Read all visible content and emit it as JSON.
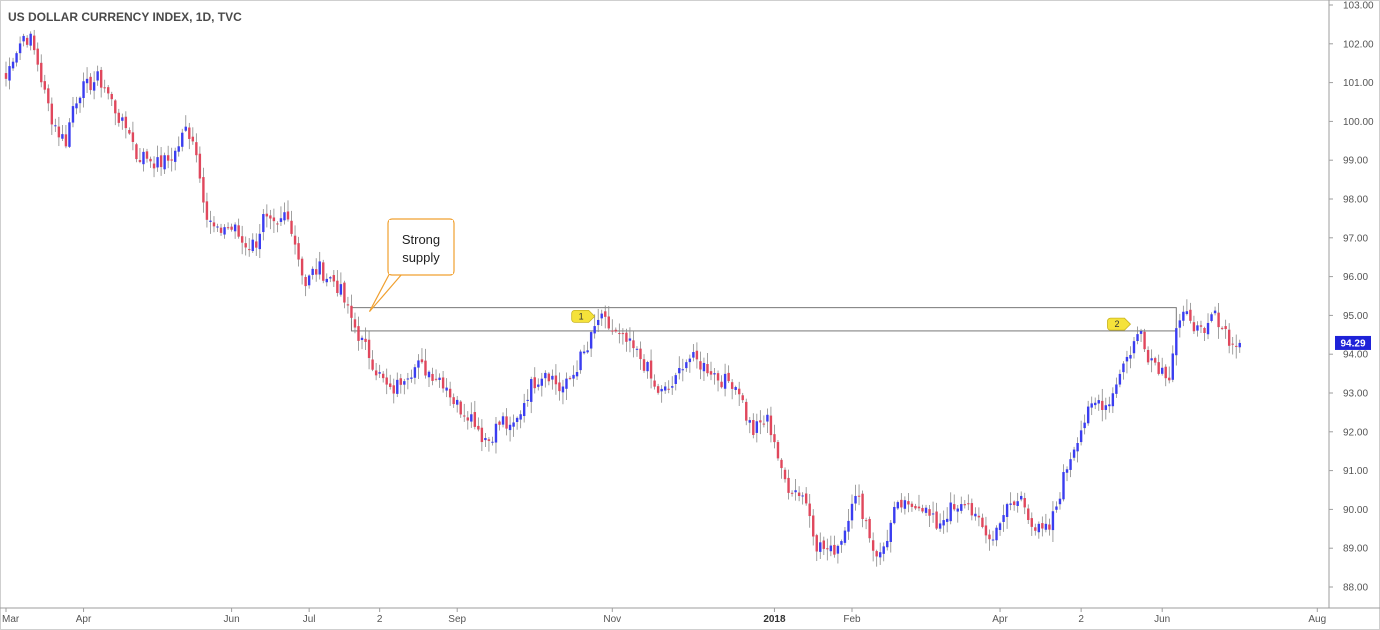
{
  "chart_data": {
    "type": "candlestick",
    "title": "US DOLLAR CURRENCY INDEX, 1D, TVC",
    "ylim": [
      87.6,
      103.0
    ],
    "y_ticks": [
      "103.00",
      "102.00",
      "101.00",
      "100.00",
      "99.00",
      "98.00",
      "97.00",
      "96.00",
      "95.00",
      "94.00",
      "93.00",
      "92.00",
      "91.00",
      "90.00",
      "89.00",
      "88.00"
    ],
    "x_ticks": [
      {
        "label": "Mar",
        "pos": 0
      },
      {
        "label": "Apr",
        "pos": 22
      },
      {
        "label": "Jun",
        "pos": 64
      },
      {
        "label": "Jul",
        "pos": 86
      },
      {
        "label": "2",
        "pos": 106
      },
      {
        "label": "Sep",
        "pos": 128
      },
      {
        "label": "Nov",
        "pos": 172
      },
      {
        "label": "2018",
        "pos": 218,
        "bold": true
      },
      {
        "label": "Feb",
        "pos": 240
      },
      {
        "label": "Apr",
        "pos": 282
      },
      {
        "label": "2",
        "pos": 305
      },
      {
        "label": "Jun",
        "pos": 328
      },
      {
        "label": "Aug",
        "pos": 372
      }
    ],
    "x_range": [
      -0.5,
      387
    ],
    "last_price": "94.29",
    "last_price_value": 94.29,
    "supply_zone": {
      "top": 95.2,
      "bottom": 94.6,
      "start": 98,
      "end": 332
    },
    "annotation": {
      "line1": "Strong",
      "line2": "supply"
    },
    "markers": [
      {
        "label": "1",
        "pos": 167,
        "price": 95.0
      },
      {
        "label": "2",
        "pos": 319,
        "price": 94.8
      }
    ],
    "anchors": [
      [
        0,
        101.1
      ],
      [
        2,
        101.7
      ],
      [
        5,
        102.2
      ],
      [
        7,
        102.1
      ],
      [
        9,
        101.5
      ],
      [
        11,
        100.7
      ],
      [
        13,
        100.1
      ],
      [
        15,
        99.7
      ],
      [
        17,
        99.5
      ],
      [
        19,
        100.4
      ],
      [
        21,
        100.8
      ],
      [
        23,
        100.9
      ],
      [
        26,
        101.1
      ],
      [
        28,
        100.9
      ],
      [
        30,
        100.5
      ],
      [
        33,
        99.9
      ],
      [
        35,
        99.8
      ],
      [
        37,
        99.1
      ],
      [
        40,
        99.1
      ],
      [
        43,
        98.9
      ],
      [
        46,
        99.0
      ],
      [
        48,
        99.2
      ],
      [
        51,
        99.8
      ],
      [
        53,
        99.6
      ],
      [
        55,
        98.7
      ],
      [
        57,
        97.5
      ],
      [
        60,
        97.1
      ],
      [
        62,
        97.3
      ],
      [
        65,
        97.2
      ],
      [
        67,
        96.9
      ],
      [
        69,
        96.8
      ],
      [
        71,
        96.9
      ],
      [
        73,
        97.5
      ],
      [
        75,
        97.3
      ],
      [
        77,
        97.2
      ],
      [
        79,
        97.6
      ],
      [
        81,
        97.3
      ],
      [
        83,
        96.5
      ],
      [
        85,
        95.8
      ],
      [
        87,
        96.1
      ],
      [
        89,
        96.2
      ],
      [
        91,
        96.0
      ],
      [
        93,
        95.9
      ],
      [
        95,
        95.6
      ],
      [
        97,
        95.1
      ],
      [
        99,
        94.7
      ],
      [
        101,
        94.3
      ],
      [
        103,
        94.0
      ],
      [
        105,
        93.6
      ],
      [
        107,
        93.3
      ],
      [
        109,
        93.0
      ],
      [
        111,
        93.2
      ],
      [
        113,
        93.5
      ],
      [
        115,
        93.6
      ],
      [
        117,
        93.7
      ],
      [
        119,
        93.6
      ],
      [
        121,
        93.5
      ],
      [
        123,
        93.4
      ],
      [
        125,
        93.2
      ],
      [
        127,
        92.8
      ],
      [
        129,
        92.6
      ],
      [
        131,
        92.5
      ],
      [
        133,
        92.3
      ],
      [
        135,
        91.9
      ],
      [
        137,
        91.8
      ],
      [
        139,
        92.1
      ],
      [
        141,
        92.3
      ],
      [
        143,
        92.0
      ],
      [
        145,
        92.3
      ],
      [
        147,
        92.8
      ],
      [
        149,
        93.2
      ],
      [
        151,
        93.4
      ],
      [
        153,
        93.6
      ],
      [
        155,
        93.4
      ],
      [
        157,
        93.1
      ],
      [
        159,
        93.2
      ],
      [
        161,
        93.5
      ],
      [
        163,
        93.9
      ],
      [
        165,
        94.1
      ],
      [
        166,
        94.4
      ],
      [
        168,
        94.9
      ],
      [
        170,
        94.8
      ],
      [
        172,
        94.6
      ],
      [
        174,
        94.4
      ],
      [
        176,
        94.3
      ],
      [
        178,
        94.1
      ],
      [
        180,
        93.9
      ],
      [
        182,
        93.6
      ],
      [
        184,
        93.1
      ],
      [
        186,
        93.0
      ],
      [
        188,
        93.1
      ],
      [
        190,
        93.3
      ],
      [
        192,
        93.8
      ],
      [
        194,
        93.9
      ],
      [
        196,
        93.8
      ],
      [
        198,
        93.7
      ],
      [
        200,
        93.6
      ],
      [
        202,
        93.4
      ],
      [
        204,
        93.3
      ],
      [
        206,
        93.3
      ],
      [
        208,
        93.1
      ],
      [
        210,
        92.4
      ],
      [
        212,
        92.0
      ],
      [
        214,
        92.2
      ],
      [
        216,
        92.3
      ],
      [
        218,
        91.8
      ],
      [
        220,
        90.9
      ],
      [
        222,
        90.6
      ],
      [
        224,
        90.5
      ],
      [
        226,
        90.4
      ],
      [
        228,
        89.9
      ],
      [
        230,
        89.1
      ],
      [
        232,
        89.0
      ],
      [
        234,
        88.9
      ],
      [
        236,
        89.1
      ],
      [
        238,
        89.5
      ],
      [
        240,
        90.3
      ],
      [
        242,
        90.2
      ],
      [
        244,
        89.7
      ],
      [
        246,
        89.0
      ],
      [
        248,
        88.8
      ],
      [
        250,
        89.3
      ],
      [
        252,
        89.9
      ],
      [
        254,
        90.1
      ],
      [
        256,
        90.0
      ],
      [
        258,
        90.2
      ],
      [
        260,
        90.1
      ],
      [
        262,
        89.8
      ],
      [
        264,
        89.6
      ],
      [
        266,
        89.8
      ],
      [
        268,
        90.0
      ],
      [
        270,
        89.9
      ],
      [
        272,
        90.2
      ],
      [
        274,
        90.0
      ],
      [
        276,
        89.6
      ],
      [
        278,
        89.4
      ],
      [
        280,
        89.2
      ],
      [
        282,
        89.8
      ],
      [
        284,
        90.0
      ],
      [
        286,
        90.1
      ],
      [
        288,
        90.3
      ],
      [
        290,
        89.9
      ],
      [
        292,
        89.5
      ],
      [
        294,
        89.4
      ],
      [
        296,
        89.5
      ],
      [
        298,
        90.1
      ],
      [
        300,
        90.8
      ],
      [
        302,
        91.4
      ],
      [
        304,
        91.9
      ],
      [
        306,
        92.3
      ],
      [
        308,
        92.6
      ],
      [
        310,
        92.8
      ],
      [
        312,
        92.7
      ],
      [
        314,
        93.0
      ],
      [
        316,
        93.6
      ],
      [
        318,
        93.9
      ],
      [
        320,
        94.3
      ],
      [
        322,
        94.6
      ],
      [
        324,
        94.0
      ],
      [
        326,
        93.8
      ],
      [
        328,
        93.6
      ],
      [
        330,
        93.5
      ],
      [
        332,
        94.7
      ],
      [
        334,
        94.9
      ],
      [
        336,
        95.0
      ],
      [
        338,
        94.6
      ],
      [
        340,
        94.4
      ],
      [
        342,
        95.0
      ],
      [
        344,
        94.9
      ],
      [
        346,
        94.6
      ],
      [
        348,
        94.2
      ],
      [
        350,
        94.29
      ]
    ],
    "count": 351
  }
}
